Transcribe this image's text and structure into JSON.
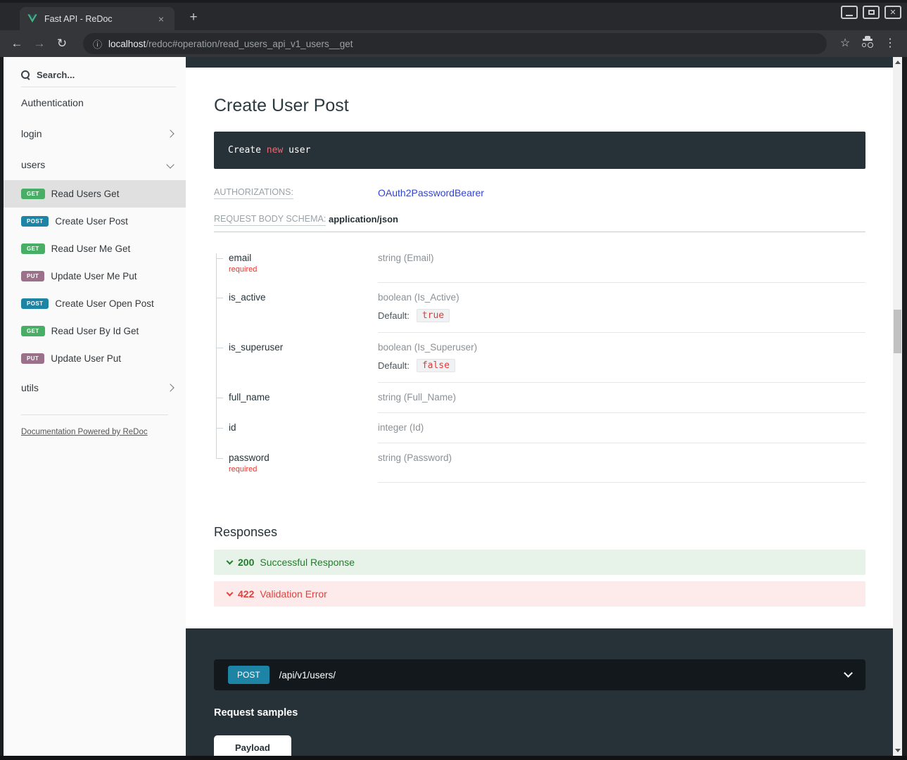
{
  "browser": {
    "tab_title": "Fast API - ReDoc",
    "url_host": "localhost",
    "url_path": "/redoc#operation/read_users_api_v1_users__get"
  },
  "icons": {
    "back": "←",
    "forward": "→",
    "reload": "↻",
    "info": "ⓘ",
    "star": "☆",
    "menu": "⋮",
    "new_tab": "+",
    "tab_close": "×",
    "win_close": "✕"
  },
  "sidebar": {
    "search_placeholder": "Search...",
    "sections": [
      {
        "label": "Authentication",
        "chevron": "none"
      },
      {
        "label": "login",
        "chevron": "right"
      },
      {
        "label": "users",
        "chevron": "down"
      }
    ],
    "operations": [
      {
        "method": "GET",
        "label": "Read Users Get",
        "active": true
      },
      {
        "method": "POST",
        "label": "Create User Post",
        "active": false
      },
      {
        "method": "GET",
        "label": "Read User Me Get",
        "active": false
      },
      {
        "method": "PUT",
        "label": "Update User Me Put",
        "active": false
      },
      {
        "method": "POST",
        "label": "Create User Open Post",
        "active": false
      },
      {
        "method": "GET",
        "label": "Read User By Id Get",
        "active": false
      },
      {
        "method": "PUT",
        "label": "Update User Put",
        "active": false
      }
    ],
    "tail_section": {
      "label": "utils",
      "chevron": "right"
    },
    "footer_link": "Documentation Powered by ReDoc"
  },
  "main": {
    "title": "Create User Post",
    "description_code": {
      "before": "Create ",
      "keyword": "new",
      "after": " user"
    },
    "authorizations_label": "AUTHORIZATIONS:",
    "authorizations_value": "OAuth2PasswordBearer",
    "request_body_label": "REQUEST BODY SCHEMA:",
    "request_body_type": "application/json",
    "fields": [
      {
        "name": "email",
        "required": true,
        "type": "string (Email)"
      },
      {
        "name": "is_active",
        "required": false,
        "type": "boolean (Is_Active)",
        "default_label": "Default:",
        "default": "true"
      },
      {
        "name": "is_superuser",
        "required": false,
        "type": "boolean (Is_Superuser)",
        "default_label": "Default:",
        "default": "false"
      },
      {
        "name": "full_name",
        "required": false,
        "type": "string (Full_Name)"
      },
      {
        "name": "id",
        "required": false,
        "type": "integer (Id)"
      },
      {
        "name": "password",
        "required": true,
        "type": "string (Password)"
      }
    ],
    "required_label": "required",
    "responses_title": "Responses",
    "responses": [
      {
        "code": "200",
        "label": "Successful Response",
        "kind": "success"
      },
      {
        "code": "422",
        "label": "Validation Error",
        "kind": "error"
      }
    ]
  },
  "request_panel": {
    "method": "POST",
    "path": "/api/v1/users/",
    "samples_title": "Request samples",
    "tabs": [
      "Payload"
    ]
  },
  "colors": {
    "method_get": "#48ad65",
    "method_post": "#1d84a5",
    "method_put": "#9b708b",
    "success_text": "#1d8127",
    "error_text": "#e0413d",
    "link": "#3344cc",
    "right_panel_bg": "#263238"
  }
}
